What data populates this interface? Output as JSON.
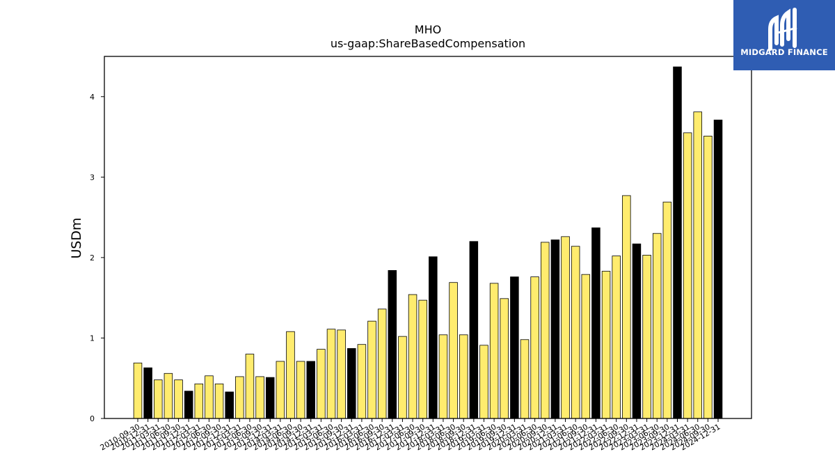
{
  "logo": {
    "text": "MIDGARD FINANCE",
    "icon": "midgard-logo-icon",
    "bg_color": "#2f5db3"
  },
  "colors": {
    "highlight": "#000000",
    "normal": "#ffec6e",
    "edge": "#000000"
  },
  "chart_data": {
    "type": "bar",
    "title": "MHO",
    "subtitle": "us-gaap:ShareBasedCompensation",
    "xlabel": "",
    "ylabel": "USDm",
    "ylim": [
      0,
      4.5
    ],
    "yticks": [
      0,
      1,
      2,
      3,
      4
    ],
    "grid": false,
    "categories": [
      "2010-09-30",
      "2010-12-31",
      "2011-03-31",
      "2011-06-30",
      "2011-09-30",
      "2011-12-31",
      "2012-03-31",
      "2012-06-30",
      "2012-09-30",
      "2012-12-31",
      "2013-03-31",
      "2013-06-30",
      "2013-09-30",
      "2013-12-31",
      "2014-03-31",
      "2014-06-30",
      "2014-09-30",
      "2014-12-31",
      "2015-03-31",
      "2015-06-30",
      "2015-09-30",
      "2015-12-31",
      "2016-03-31",
      "2016-06-30",
      "2016-09-30",
      "2016-12-31",
      "2017-03-31",
      "2017-06-30",
      "2017-09-30",
      "2017-12-31",
      "2018-03-31",
      "2018-06-30",
      "2018-09-30",
      "2018-12-31",
      "2019-03-31",
      "2019-06-30",
      "2019-09-30",
      "2019-12-31",
      "2020-03-31",
      "2020-06-30",
      "2020-09-30",
      "2020-12-31",
      "2021-03-31",
      "2021-06-30",
      "2021-09-30",
      "2021-12-31",
      "2022-03-31",
      "2022-06-30",
      "2022-09-30",
      "2022-12-31",
      "2023-03-31",
      "2023-06-30",
      "2023-09-30",
      "2023-12-31",
      "2024-03-31",
      "2024-06-30",
      "2024-09-30",
      "2024-12-31"
    ],
    "values": [
      0.69,
      0.63,
      0.48,
      0.56,
      0.48,
      0.34,
      0.43,
      0.53,
      0.43,
      0.33,
      0.52,
      0.8,
      0.52,
      0.51,
      0.71,
      1.08,
      0.71,
      0.71,
      0.86,
      1.11,
      1.1,
      0.87,
      0.92,
      1.21,
      1.36,
      1.84,
      1.02,
      1.54,
      1.47,
      2.01,
      1.04,
      1.69,
      1.04,
      2.2,
      0.91,
      1.68,
      1.49,
      1.76,
      0.98,
      1.76,
      2.19,
      2.22,
      2.26,
      2.14,
      1.79,
      2.37,
      1.83,
      2.02,
      2.77,
      2.17,
      2.03,
      2.3,
      2.69,
      4.37,
      3.55,
      3.81,
      3.51,
      3.71
    ],
    "highlighted": [
      false,
      true,
      false,
      false,
      false,
      true,
      false,
      false,
      false,
      true,
      false,
      false,
      false,
      true,
      false,
      false,
      false,
      true,
      false,
      false,
      false,
      true,
      false,
      false,
      false,
      true,
      false,
      false,
      false,
      true,
      false,
      false,
      false,
      true,
      false,
      false,
      false,
      true,
      false,
      false,
      false,
      true,
      false,
      false,
      false,
      true,
      false,
      false,
      false,
      true,
      false,
      false,
      false,
      true,
      false,
      false,
      false,
      true
    ]
  }
}
